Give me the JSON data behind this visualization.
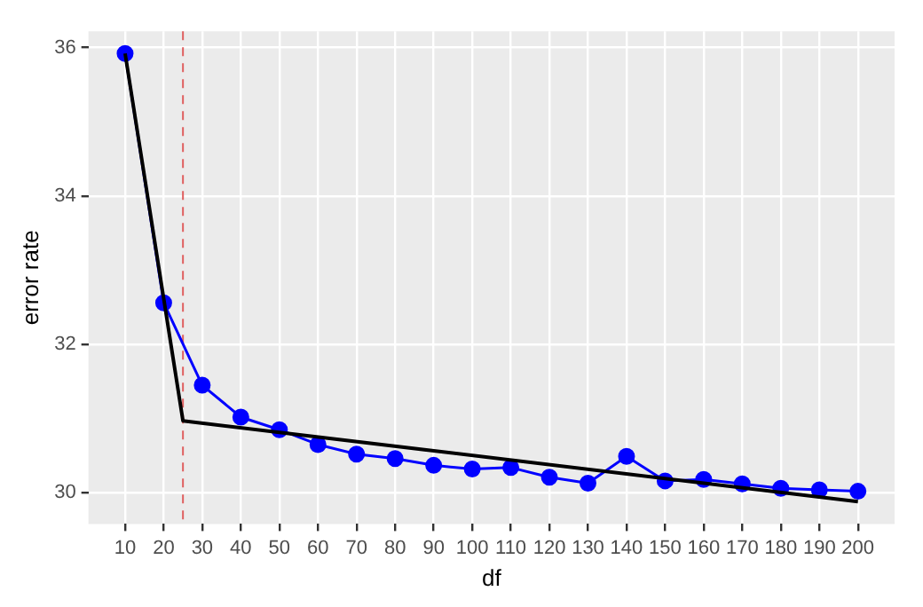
{
  "chart_data": {
    "type": "line",
    "xlabel": "df",
    "ylabel": "error rate",
    "xlim": [
      0.5,
      209.5
    ],
    "xticks": [
      10,
      20,
      30,
      40,
      50,
      60,
      70,
      80,
      90,
      100,
      110,
      120,
      130,
      140,
      150,
      160,
      170,
      180,
      190,
      200
    ],
    "ylim": [
      29.58,
      36.22
    ],
    "yticks": [
      30,
      32,
      34,
      36
    ],
    "grid": true,
    "legend": false,
    "series": [
      {
        "color": "#0000ff",
        "marker": "circle",
        "x": [
          10,
          20,
          30,
          40,
          50,
          60,
          70,
          80,
          90,
          100,
          110,
          120,
          130,
          140,
          150,
          160,
          170,
          180,
          190,
          200
        ],
        "values": [
          35.92,
          32.56,
          31.45,
          31.02,
          30.85,
          30.65,
          30.52,
          30.46,
          30.37,
          30.32,
          30.34,
          30.21,
          30.13,
          30.49,
          30.16,
          30.18,
          30.12,
          30.06,
          30.04,
          30.02
        ]
      },
      {
        "color": "#000000",
        "marker": "none",
        "x": [
          10,
          25,
          200
        ],
        "values": [
          35.92,
          30.97,
          29.88
        ]
      }
    ],
    "ref_lines": [
      {
        "axis": "x",
        "value": 25,
        "color": "#e06060",
        "line_style": "dashed"
      }
    ]
  }
}
